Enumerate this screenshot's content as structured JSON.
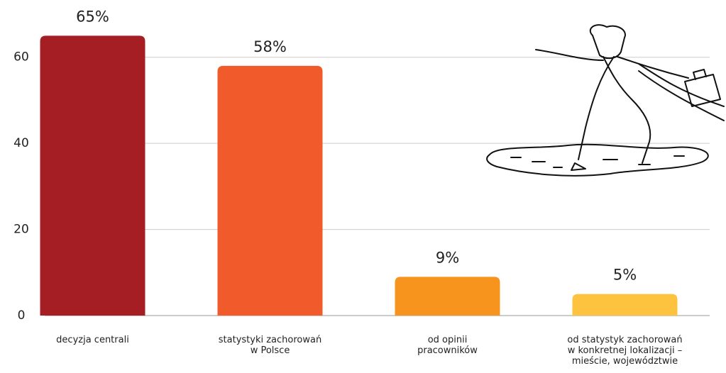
{
  "chart_data": {
    "type": "bar",
    "categories": [
      "decyzja centrali",
      "statystyki zachorowań\nw Polsce",
      "od opinii\npracowników",
      "od statystyk zachorowań\nw konkretnej lokalizacji –\nmieście, województwie"
    ],
    "values": [
      65,
      58,
      9,
      5
    ],
    "value_labels": [
      "65%",
      "58%",
      "9%",
      "5%"
    ],
    "colors": [
      "#a51e23",
      "#f15a2b",
      "#f7941e",
      "#fdc23e"
    ],
    "ylim": [
      0,
      70
    ],
    "yticks": [
      0,
      20,
      40,
      60
    ],
    "grid": true
  }
}
